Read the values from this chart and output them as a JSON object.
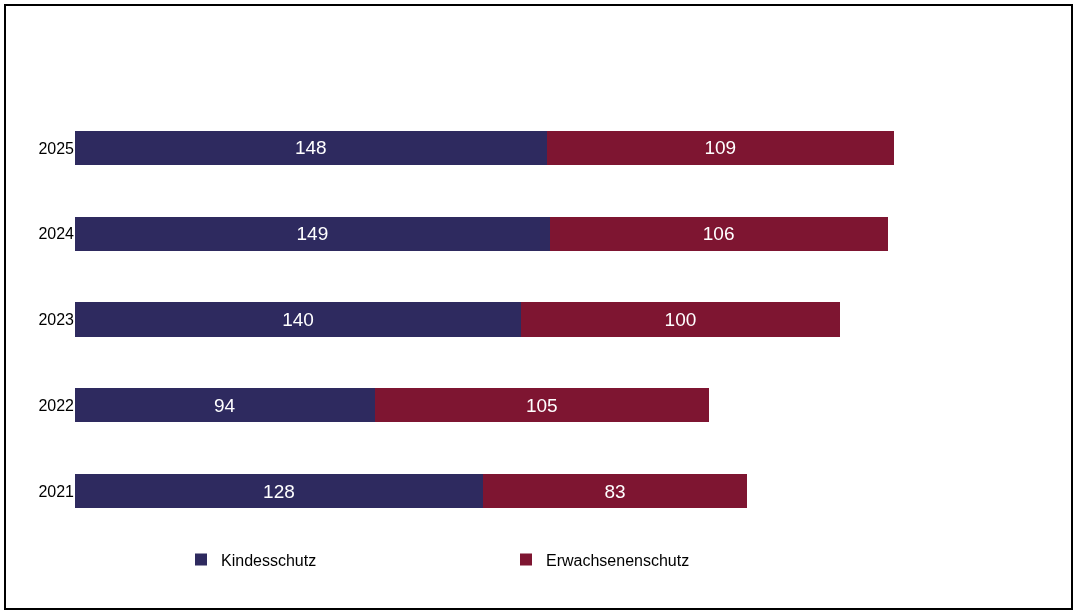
{
  "chart_data": {
    "type": "bar",
    "orientation": "horizontal",
    "stacked": true,
    "data_labels": true,
    "legend": "bottom",
    "grid": false,
    "categories": [
      "2025",
      "2024",
      "2023",
      "2022",
      "2021"
    ],
    "series": [
      {
        "name": "Kindesschutz",
        "color": "#2e2a5f",
        "values": [
          148,
          149,
          140,
          94,
          128
        ]
      },
      {
        "name": "Erwachsenenschutz",
        "color": "#7e1531",
        "values": [
          109,
          106,
          100,
          105,
          83
        ]
      }
    ]
  }
}
